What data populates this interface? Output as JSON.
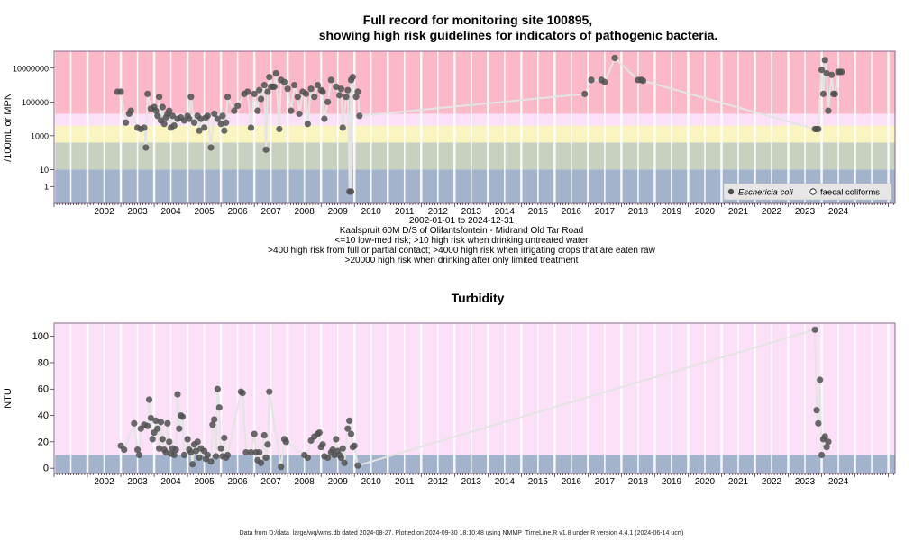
{
  "chart_data": [
    {
      "type": "scatter",
      "title_line1": "Full record for monitoring site 100895,",
      "title_line2": "showing high risk guidelines for indicators of pathogenic bacteria.",
      "ylabel": "/100mL or MPN",
      "yscale": "log",
      "ylim": [
        0.1,
        100000000
      ],
      "yticks": [
        {
          "v": 10000000,
          "label": "10000000"
        },
        {
          "v": 100000,
          "label": "100000"
        },
        {
          "v": 1000,
          "label": "1000"
        },
        {
          "v": 10,
          "label": "10"
        },
        {
          "v": 1,
          "label": "1"
        }
      ],
      "xlim": [
        2001.0,
        2026.2
      ],
      "xticks": [
        "2002",
        "2003",
        "2004",
        "2005",
        "2006",
        "2007",
        "2008",
        "2009",
        "2010",
        "2011",
        "2012",
        "2013",
        "2014",
        "2015",
        "2016",
        "2017",
        "2018",
        "2019",
        "2020",
        "2021",
        "2022",
        "2023",
        "2024"
      ],
      "subtitle_lines": [
        "2002-01-01 to 2024-12-31",
        "Kaalspruit 60M D/S of Olifantsfontein - Midrand Old Tar Road",
        "<=10 low-med risk; >10 high risk when drinking untreated water",
        ">400 high risk from full or partial contact; >4000 high risk when irrigating crops that are eaten raw",
        ">20000 high risk when drinking after only limited treatment"
      ],
      "bands": [
        {
          "from": 0.1,
          "to": 10,
          "color": "#a3b3cc"
        },
        {
          "from": 10,
          "to": 400,
          "color": "#c8d0c0"
        },
        {
          "from": 400,
          "to": 4000,
          "color": "#faf5c0"
        },
        {
          "from": 4000,
          "to": 20000,
          "color": "#fbe0f8"
        },
        {
          "from": 20000,
          "to": 100000000,
          "color": "#fbb8c8"
        }
      ],
      "legend": {
        "position": "bottom-right",
        "entries": [
          {
            "label": "Eschericia coli",
            "marker": "filled",
            "color": "#505050"
          },
          {
            "label": "faecal coliforms",
            "marker": "open",
            "color": "#000000"
          }
        ]
      },
      "series": [
        {
          "name": "Eschericia coli",
          "color": "#505050",
          "points": [
            [
              2002.9,
              400000
            ],
            [
              2003.0,
              400000
            ],
            [
              2003.15,
              6000
            ],
            [
              2003.25,
              20000
            ],
            [
              2003.3,
              30000
            ],
            [
              2003.5,
              3000
            ],
            [
              2003.6,
              2500
            ],
            [
              2003.7,
              3000
            ],
            [
              2003.75,
              200
            ],
            [
              2003.8,
              300000
            ],
            [
              2003.9,
              40000
            ],
            [
              2004.0,
              50000
            ],
            [
              2004.05,
              30000
            ],
            [
              2004.1,
              15000
            ],
            [
              2004.15,
              200000
            ],
            [
              2004.2,
              8000
            ],
            [
              2004.25,
              50000
            ],
            [
              2004.3,
              5000
            ],
            [
              2004.35,
              12000
            ],
            [
              2004.4,
              20000
            ],
            [
              2004.45,
              30000
            ],
            [
              2004.5,
              3000
            ],
            [
              2004.55,
              15000
            ],
            [
              2004.6,
              4000
            ],
            [
              2004.7,
              10000
            ],
            [
              2004.8,
              12000
            ],
            [
              2004.9,
              8000
            ],
            [
              2005.0,
              15000
            ],
            [
              2005.05,
              10000
            ],
            [
              2005.1,
              200000
            ],
            [
              2005.2,
              6000
            ],
            [
              2005.3,
              15000
            ],
            [
              2005.35,
              2000
            ],
            [
              2005.4,
              10000
            ],
            [
              2005.5,
              3000
            ],
            [
              2005.55,
              12000
            ],
            [
              2005.6,
              15000
            ],
            [
              2005.7,
              200
            ],
            [
              2005.8,
              20000
            ],
            [
              2005.9,
              10000
            ],
            [
              2006.0,
              5000
            ],
            [
              2006.05,
              15000
            ],
            [
              2006.1,
              2000
            ],
            [
              2006.15,
              6000
            ],
            [
              2006.2,
              200000
            ],
            [
              2006.4,
              30000
            ],
            [
              2006.5,
              60000
            ],
            [
              2006.7,
              300000
            ],
            [
              2006.8,
              400000
            ],
            [
              2006.9,
              3000
            ],
            [
              2007.0,
              300000
            ],
            [
              2007.1,
              30000
            ],
            [
              2007.15,
              500000
            ],
            [
              2007.2,
              150000
            ],
            [
              2007.3,
              1000000
            ],
            [
              2007.35,
              150
            ],
            [
              2007.4,
              400000
            ],
            [
              2007.45,
              3000000
            ],
            [
              2007.5,
              800000
            ],
            [
              2007.55,
              800000
            ],
            [
              2007.6,
              800000
            ],
            [
              2007.65,
              5000000
            ],
            [
              2007.75,
              2500
            ],
            [
              2007.8,
              2000000
            ],
            [
              2007.9,
              1500000
            ],
            [
              2008.0,
              600000
            ],
            [
              2008.1,
              30000
            ],
            [
              2008.2,
              1000000
            ],
            [
              2008.3,
              200000
            ],
            [
              2008.35,
              20000
            ],
            [
              2008.45,
              400000
            ],
            [
              2008.55,
              300000
            ],
            [
              2008.6,
              5000
            ],
            [
              2008.7,
              600000
            ],
            [
              2008.8,
              200000
            ],
            [
              2008.9,
              1000000
            ],
            [
              2009.0,
              500000
            ],
            [
              2009.05,
              400000
            ],
            [
              2009.1,
              10000
            ],
            [
              2009.2,
              100000
            ],
            [
              2009.3,
              2000000
            ],
            [
              2009.45,
              800000
            ],
            [
              2009.55,
              250000
            ],
            [
              2009.6,
              600000
            ],
            [
              2009.65,
              3000
            ],
            [
              2009.75,
              200000
            ],
            [
              2009.8,
              500000
            ],
            [
              2009.9,
              2000000
            ],
            [
              2009.95,
              3000000
            ],
            [
              2009.85,
              0.5
            ],
            [
              2009.9,
              0.5
            ],
            [
              2010.05,
              200000
            ],
            [
              2010.1,
              400000
            ],
            [
              2010.15,
              15000
            ],
            [
              2016.9,
              300000
            ],
            [
              2017.1,
              2000000
            ],
            [
              2017.4,
              2000000
            ],
            [
              2017.5,
              1500000
            ],
            [
              2017.8,
              40000000
            ],
            [
              2018.5,
              2000000
            ],
            [
              2018.6,
              2000000
            ],
            [
              2018.65,
              1800000
            ],
            [
              2023.8,
              2500
            ],
            [
              2023.85,
              2500
            ],
            [
              2023.9,
              2500
            ],
            [
              2024.0,
              8000000
            ],
            [
              2024.05,
              300000
            ],
            [
              2024.1,
              30000000
            ],
            [
              2024.15,
              5000000
            ],
            [
              2024.2,
              30000
            ],
            [
              2024.3,
              4000000
            ],
            [
              2024.35,
              300000
            ],
            [
              2024.4,
              300000
            ],
            [
              2024.5,
              6000000
            ],
            [
              2024.55,
              6000000
            ],
            [
              2024.6,
              6000000
            ]
          ]
        },
        {
          "name": "faecal coliforms",
          "color": "#000000",
          "points": []
        }
      ]
    },
    {
      "type": "scatter",
      "title": "Turbidity",
      "ylabel": "NTU",
      "ylim": [
        -4,
        110
      ],
      "yticks": [
        0,
        20,
        40,
        60,
        80,
        100
      ],
      "xlim": [
        2001.0,
        2026.2
      ],
      "xticks": [
        "2002",
        "2003",
        "2004",
        "2005",
        "2006",
        "2007",
        "2008",
        "2009",
        "2010",
        "2011",
        "2012",
        "2013",
        "2014",
        "2015",
        "2016",
        "2017",
        "2018",
        "2019",
        "2020",
        "2021",
        "2022",
        "2023",
        "2024"
      ],
      "bands": [
        {
          "from": -4,
          "to": 10,
          "color": "#a3b3cc"
        },
        {
          "from": 10,
          "to": 110,
          "color": "#fbe0f8"
        }
      ],
      "series": [
        {
          "name": "Turbidity",
          "color": "#505050",
          "points": [
            [
              2003.0,
              17
            ],
            [
              2003.1,
              14
            ],
            [
              2003.4,
              34
            ],
            [
              2003.5,
              14
            ],
            [
              2003.55,
              10
            ],
            [
              2003.6,
              30
            ],
            [
              2003.7,
              33
            ],
            [
              2003.8,
              32
            ],
            [
              2003.85,
              52
            ],
            [
              2003.9,
              38
            ],
            [
              2003.95,
              22
            ],
            [
              2004.0,
              27
            ],
            [
              2004.05,
              36
            ],
            [
              2004.1,
              30
            ],
            [
              2004.15,
              15
            ],
            [
              2004.2,
              35
            ],
            [
              2004.25,
              22
            ],
            [
              2004.3,
              14
            ],
            [
              2004.35,
              12
            ],
            [
              2004.4,
              34
            ],
            [
              2004.45,
              20
            ],
            [
              2004.5,
              11
            ],
            [
              2004.55,
              15
            ],
            [
              2004.6,
              10
            ],
            [
              2004.65,
              14
            ],
            [
              2004.7,
              56
            ],
            [
              2004.75,
              30
            ],
            [
              2004.8,
              40
            ],
            [
              2004.85,
              39
            ],
            [
              2004.9,
              10
            ],
            [
              2005.0,
              22
            ],
            [
              2005.05,
              14
            ],
            [
              2005.1,
              12
            ],
            [
              2005.15,
              3
            ],
            [
              2005.2,
              18
            ],
            [
              2005.25,
              13
            ],
            [
              2005.3,
              20
            ],
            [
              2005.35,
              8
            ],
            [
              2005.4,
              15
            ],
            [
              2005.5,
              13
            ],
            [
              2005.55,
              7
            ],
            [
              2005.6,
              10
            ],
            [
              2005.7,
              5
            ],
            [
              2005.75,
              33
            ],
            [
              2005.8,
              37
            ],
            [
              2005.85,
              9
            ],
            [
              2005.9,
              60
            ],
            [
              2005.95,
              46
            ],
            [
              2006.0,
              15
            ],
            [
              2006.05,
              9
            ],
            [
              2006.1,
              23
            ],
            [
              2006.15,
              8
            ],
            [
              2006.2,
              10
            ],
            [
              2006.6,
              58
            ],
            [
              2006.65,
              57
            ],
            [
              2006.75,
              12
            ],
            [
              2006.9,
              12
            ],
            [
              2007.0,
              26
            ],
            [
              2007.05,
              12
            ],
            [
              2007.1,
              6
            ],
            [
              2007.15,
              12
            ],
            [
              2007.2,
              4
            ],
            [
              2007.3,
              25
            ],
            [
              2007.35,
              8
            ],
            [
              2007.4,
              18
            ],
            [
              2007.45,
              58
            ],
            [
              2007.8,
              1
            ],
            [
              2007.9,
              22
            ],
            [
              2007.95,
              20
            ],
            [
              2008.5,
              10
            ],
            [
              2008.6,
              8
            ],
            [
              2008.7,
              21
            ],
            [
              2008.8,
              24
            ],
            [
              2008.9,
              26
            ],
            [
              2008.95,
              27
            ],
            [
              2009.0,
              16
            ],
            [
              2009.05,
              18
            ],
            [
              2009.1,
              9
            ],
            [
              2009.2,
              8
            ],
            [
              2009.3,
              12
            ],
            [
              2009.35,
              14
            ],
            [
              2009.4,
              10
            ],
            [
              2009.45,
              22
            ],
            [
              2009.5,
              13
            ],
            [
              2009.55,
              10
            ],
            [
              2009.6,
              8
            ],
            [
              2009.65,
              15
            ],
            [
              2009.7,
              4
            ],
            [
              2009.8,
              30
            ],
            [
              2009.85,
              36
            ],
            [
              2009.9,
              26
            ],
            [
              2009.95,
              16
            ],
            [
              2010.0,
              17
            ],
            [
              2010.1,
              2
            ],
            [
              2023.8,
              105
            ],
            [
              2023.85,
              44
            ],
            [
              2023.9,
              34
            ],
            [
              2023.95,
              67
            ],
            [
              2024.0,
              10
            ],
            [
              2024.05,
              22
            ],
            [
              2024.1,
              24
            ],
            [
              2024.15,
              16
            ],
            [
              2024.2,
              20
            ]
          ]
        }
      ]
    }
  ],
  "footer": "Data from D:/data_large/wq/wms.db dated 2024-08-27. Plotted on 2024-09-30 18:10:48 using NMMP_TimeLine.R v1.8 under R version 4.4.1 (2024-06-14 ucrt)"
}
